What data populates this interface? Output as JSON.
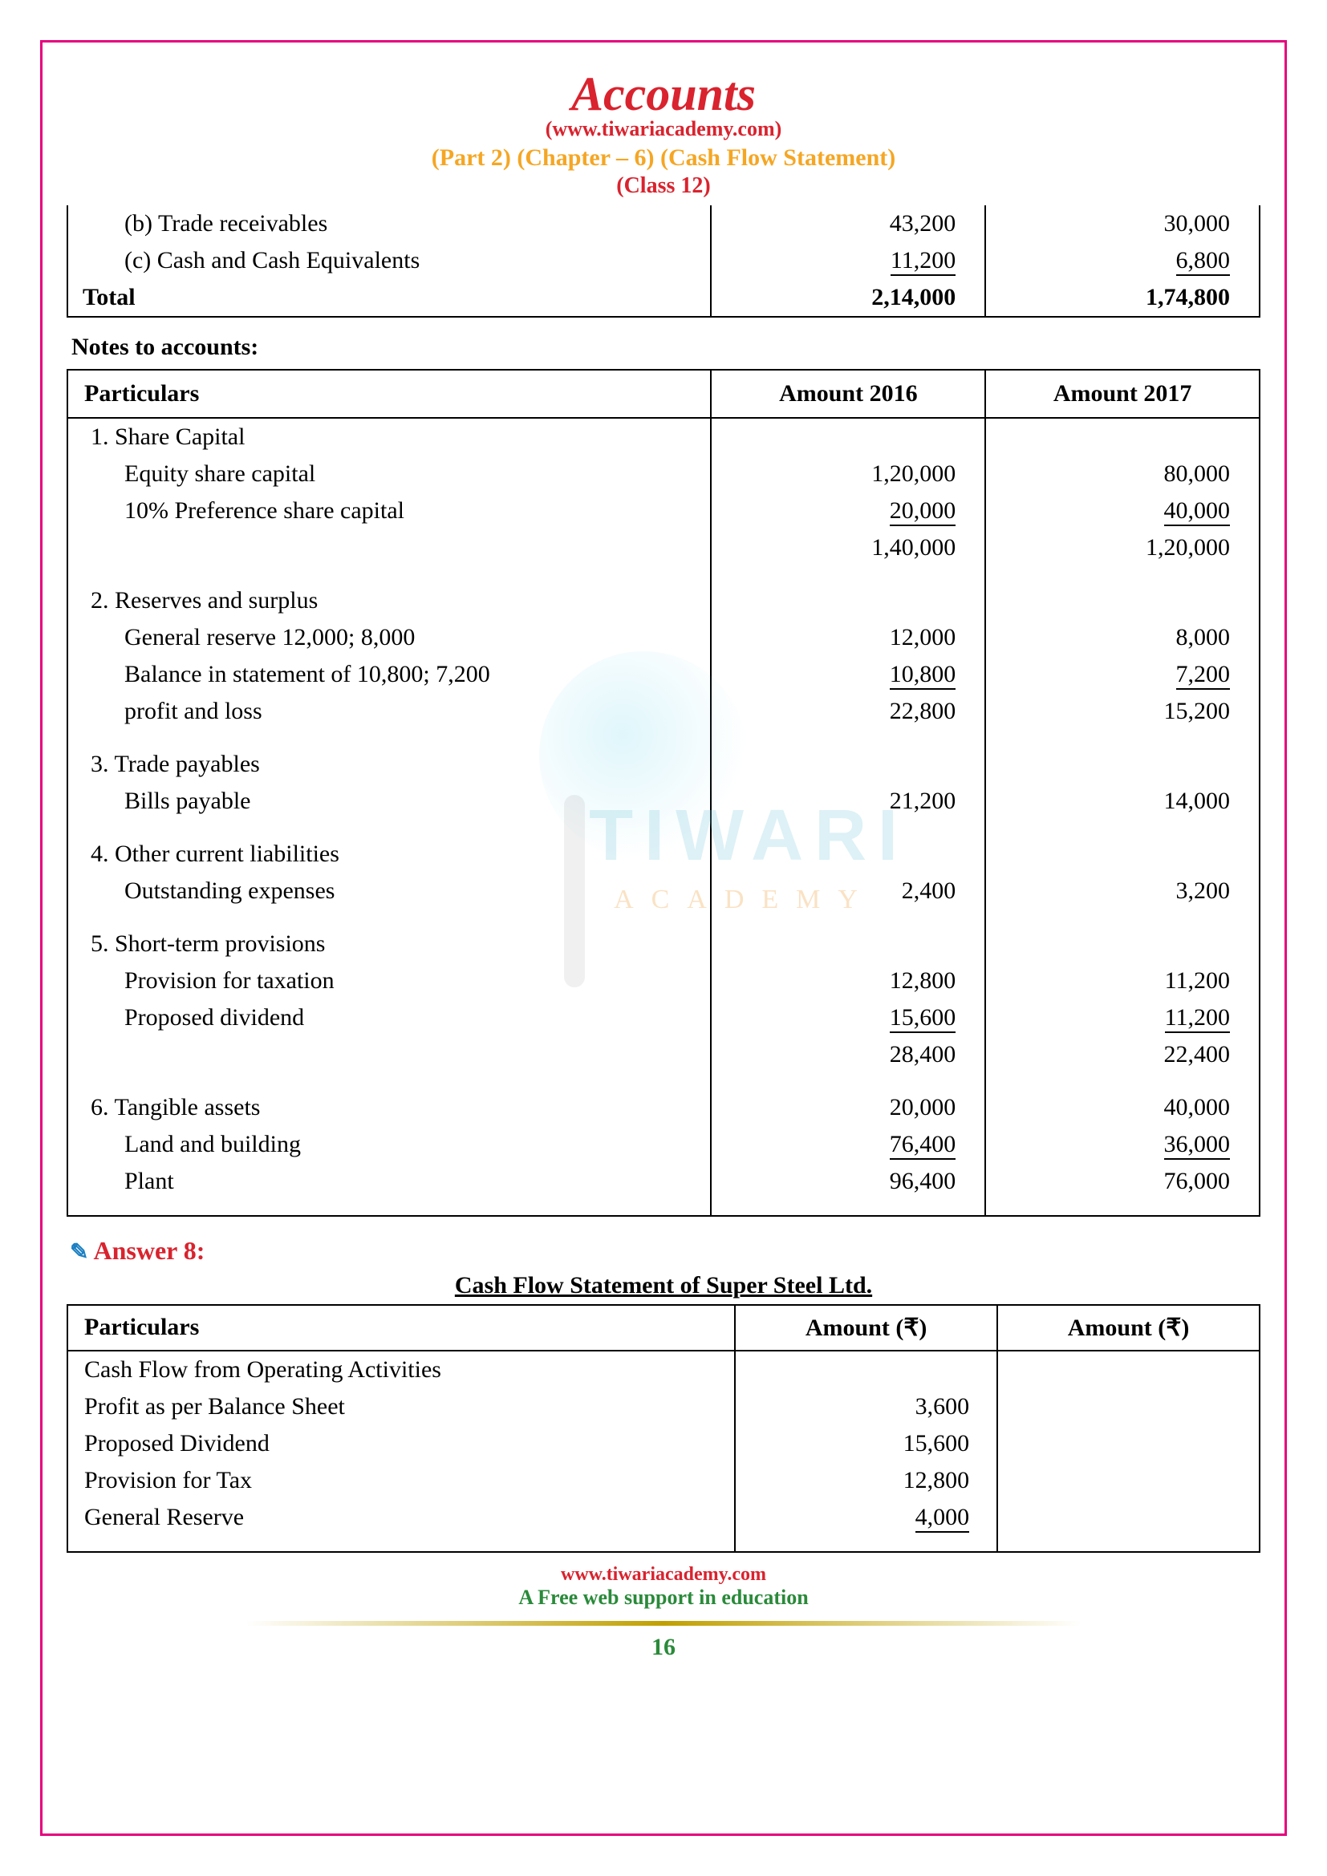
{
  "header": {
    "title": "Accounts",
    "site": "(www.tiwariacademy.com)",
    "chapter": "(Part 2) (Chapter – 6) (Cash Flow Statement)",
    "class": "(Class 12)"
  },
  "tbl1": {
    "rows": [
      {
        "label": "(b) Trade receivables",
        "a": "43,200",
        "b": "30,000",
        "indent": true
      },
      {
        "label": "(c) Cash and Cash Equivalents",
        "a": "11,200",
        "b": "6,800",
        "indent": true,
        "underline": true
      }
    ],
    "total": {
      "label": "Total",
      "a": "2,14,000",
      "b": "1,74,800"
    }
  },
  "notes_label": "Notes to accounts:",
  "tbl2": {
    "headers": {
      "p": "Particulars",
      "a": "Amount 2016",
      "b": "Amount 2017"
    },
    "sections": [
      {
        "title": "1. Share Capital",
        "rows": [
          {
            "label": "Equity share capital",
            "a": "1,20,000",
            "b": "80,000"
          },
          {
            "label": "10% Preference share capital",
            "a": "20,000",
            "b": "40,000",
            "underline": true
          },
          {
            "label": "",
            "a": "1,40,000",
            "b": "1,20,000"
          }
        ]
      },
      {
        "title": "2. Reserves and surplus",
        "rows": [
          {
            "label": "General reserve 12,000; 8,000",
            "a": "12,000",
            "b": "8,000"
          },
          {
            "label": "Balance in statement of 10,800; 7,200",
            "a": "10,800",
            "b": "7,200",
            "underline": true
          },
          {
            "label": "profit and loss",
            "a": "22,800",
            "b": "15,200"
          }
        ]
      },
      {
        "title": "3. Trade payables",
        "rows": [
          {
            "label": "Bills payable",
            "a": "21,200",
            "b": "14,000"
          }
        ]
      },
      {
        "title": "4. Other current liabilities",
        "rows": [
          {
            "label": "Outstanding expenses",
            "a": "2,400",
            "b": "3,200"
          }
        ]
      },
      {
        "title": "5. Short-term provisions",
        "rows": [
          {
            "label": "Provision for taxation",
            "a": "12,800",
            "b": "11,200"
          },
          {
            "label": "Proposed dividend",
            "a": "15,600",
            "b": "11,200",
            "underline": true
          },
          {
            "label": "",
            "a": "28,400",
            "b": "22,400"
          }
        ]
      },
      {
        "title": "6. Tangible assets",
        "rows_special": true,
        "rows": [
          {
            "label": "Land and building",
            "a": "20,000",
            "b": "40,000"
          },
          {
            "label": "Plant",
            "a": "76,400",
            "b": "36,000",
            "underline": true
          },
          {
            "label": "",
            "a": "96,400",
            "b": "76,000"
          }
        ]
      }
    ]
  },
  "answer": {
    "heading": "Answer 8:",
    "title": "Cash Flow Statement of Super Steel Ltd.",
    "headers": {
      "p": "Particulars",
      "a": "Amount (₹)",
      "b": "Amount (₹)"
    },
    "rows": [
      {
        "label": "Cash Flow from Operating Activities",
        "a": "",
        "b": ""
      },
      {
        "label": "Profit as per Balance Sheet",
        "a": "3,600",
        "b": ""
      },
      {
        "label": "Proposed Dividend",
        "a": "15,600",
        "b": ""
      },
      {
        "label": "Provision for Tax",
        "a": "12,800",
        "b": ""
      },
      {
        "label": "General Reserve",
        "a": "4,000",
        "b": "",
        "underline": true
      }
    ]
  },
  "footer": {
    "link": "www.tiwariacademy.com",
    "tag": "A Free web support in education",
    "page": "16"
  },
  "watermark": {
    "t1": "TIWARI",
    "t2": "ACADEMY"
  }
}
